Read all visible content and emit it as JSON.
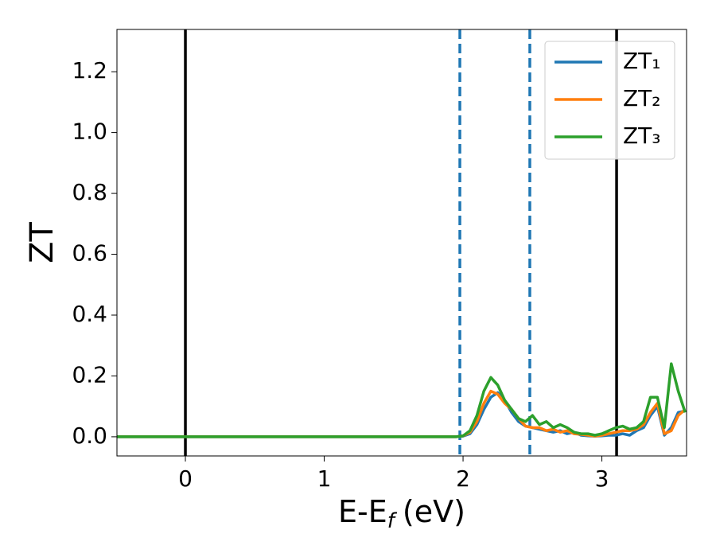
{
  "chart_data": {
    "type": "line",
    "xlabel": [
      "E-E",
      "f",
      "(eV)"
    ],
    "ylabel": "ZT",
    "x": [
      -0.5,
      1.95,
      2.0,
      2.05,
      2.1,
      2.15,
      2.2,
      2.25,
      2.3,
      2.35,
      2.4,
      2.45,
      2.5,
      2.55,
      2.6,
      2.65,
      2.7,
      2.75,
      2.8,
      2.85,
      2.9,
      2.95,
      3.0,
      3.05,
      3.1,
      3.15,
      3.2,
      3.25,
      3.3,
      3.35,
      3.4,
      3.45,
      3.5,
      3.55,
      3.6
    ],
    "series": [
      {
        "name": "ZT₁",
        "color": "#1f77b4",
        "values": [
          0,
          0,
          0.002,
          0.01,
          0.04,
          0.09,
          0.13,
          0.145,
          0.12,
          0.08,
          0.05,
          0.035,
          0.03,
          0.025,
          0.02,
          0.015,
          0.02,
          0.01,
          0.015,
          0.005,
          0.003,
          0.002,
          0.003,
          0.005,
          0.005,
          0.01,
          0.005,
          0.02,
          0.03,
          0.07,
          0.1,
          0.005,
          0.03,
          0.08,
          0.085
        ]
      },
      {
        "name": "ZT₂",
        "color": "#ff7f0e",
        "values": [
          0,
          0,
          0.003,
          0.015,
          0.05,
          0.11,
          0.15,
          0.14,
          0.11,
          0.09,
          0.06,
          0.035,
          0.03,
          0.03,
          0.02,
          0.025,
          0.015,
          0.02,
          0.01,
          0.008,
          0.005,
          0.002,
          0.005,
          0.01,
          0.015,
          0.02,
          0.02,
          0.025,
          0.04,
          0.08,
          0.11,
          0.01,
          0.02,
          0.07,
          0.09
        ]
      },
      {
        "name": "ZT₃",
        "color": "#2ca02c",
        "values": [
          0,
          0,
          0.003,
          0.02,
          0.07,
          0.15,
          0.195,
          0.17,
          0.12,
          0.09,
          0.06,
          0.05,
          0.07,
          0.04,
          0.05,
          0.03,
          0.04,
          0.03,
          0.015,
          0.01,
          0.01,
          0.005,
          0.01,
          0.02,
          0.03,
          0.035,
          0.025,
          0.03,
          0.05,
          0.13,
          0.13,
          0.03,
          0.24,
          0.15,
          0.08
        ]
      }
    ],
    "vlines": [
      {
        "x": 0,
        "color": "#000000",
        "style": "solid"
      },
      {
        "x": 1.977,
        "color": "#1f77b4",
        "style": "dashed"
      },
      {
        "x": 2.481,
        "color": "#1f77b4",
        "style": "dashed"
      },
      {
        "x": 3.106,
        "color": "#000000",
        "style": "solid"
      }
    ],
    "xlim": [
      -0.493,
      3.61
    ],
    "ylim": [
      -0.063,
      1.339
    ],
    "xticks": [
      0,
      1,
      2,
      3
    ],
    "yticks": [
      {
        "value": 0,
        "label": "0.0"
      },
      {
        "value": 0.2,
        "label": "0.2"
      },
      {
        "value": 0.4,
        "label": "0.4"
      },
      {
        "value": 0.6,
        "label": "0.6"
      },
      {
        "value": 0.8,
        "label": "0.8"
      },
      {
        "value": 1.0,
        "label": "1.0"
      },
      {
        "value": 1.2,
        "label": "1.2"
      }
    ],
    "legend": "upper right",
    "grid": false
  }
}
